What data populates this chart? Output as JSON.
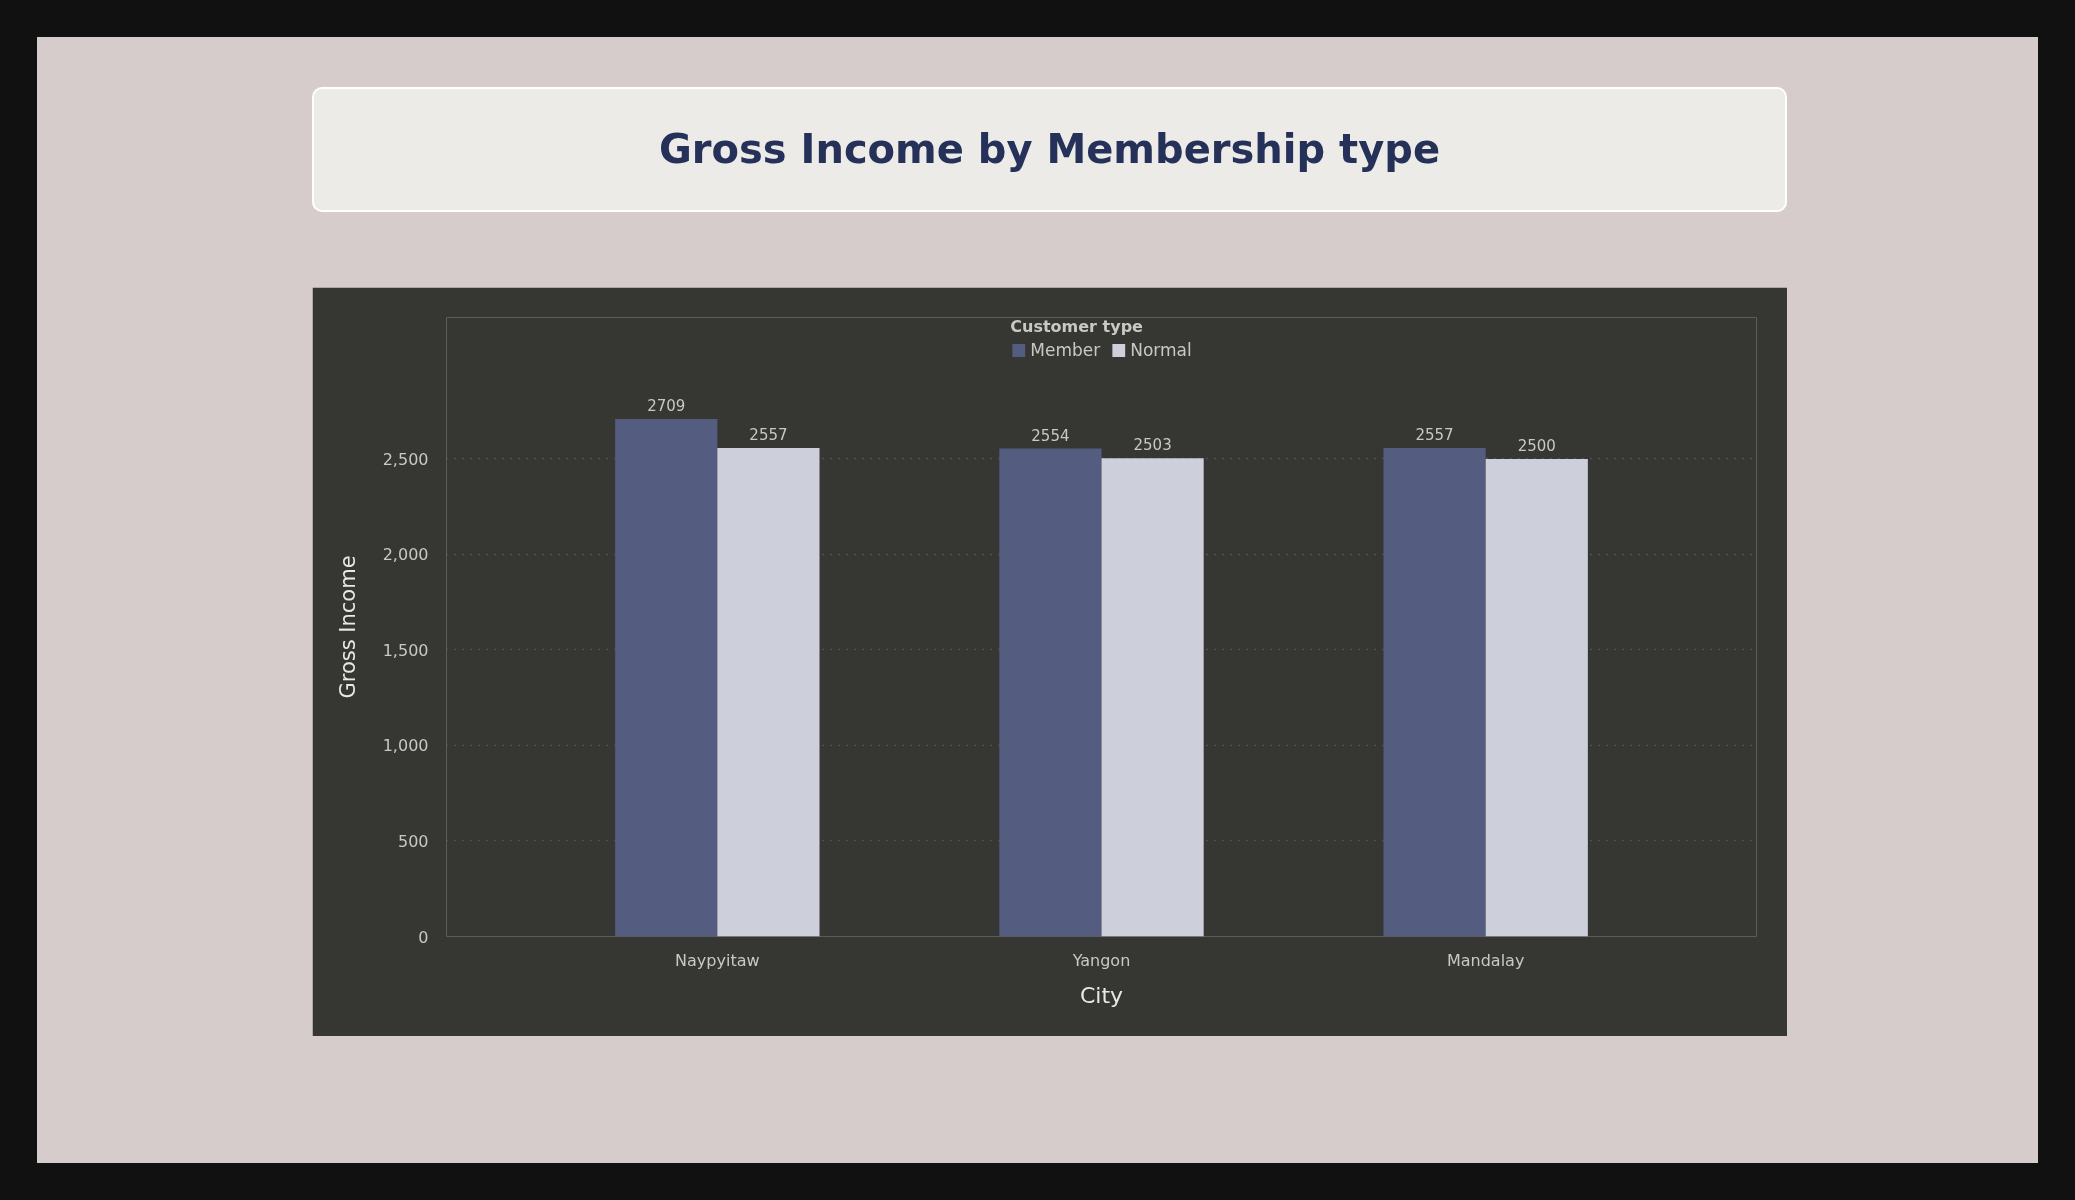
{
  "chart_data": {
    "type": "bar",
    "title": "Gross Income by Membership type",
    "xlabel": "City",
    "ylabel": "Gross Income",
    "legend_title": "Customer type",
    "categories": [
      "Naypyitaw",
      "Yangon",
      "Mandalay"
    ],
    "series": [
      {
        "name": "Member",
        "color": "#545c80",
        "values": [
          2709,
          2554,
          2557
        ]
      },
      {
        "name": "Normal",
        "color": "#cdcfdb",
        "values": [
          2557,
          2503,
          2500
        ]
      }
    ],
    "ylim": [
      0,
      3240
    ],
    "yticks": [
      0,
      500,
      {
        "value": 1000,
        "label": "1,000"
      },
      {
        "value": 1500,
        "label": "1,500"
      },
      {
        "value": 2000,
        "label": "2,000"
      },
      {
        "value": 2500,
        "label": "2,500"
      }
    ],
    "grid": "y",
    "legend": "top",
    "data_labels": true
  }
}
